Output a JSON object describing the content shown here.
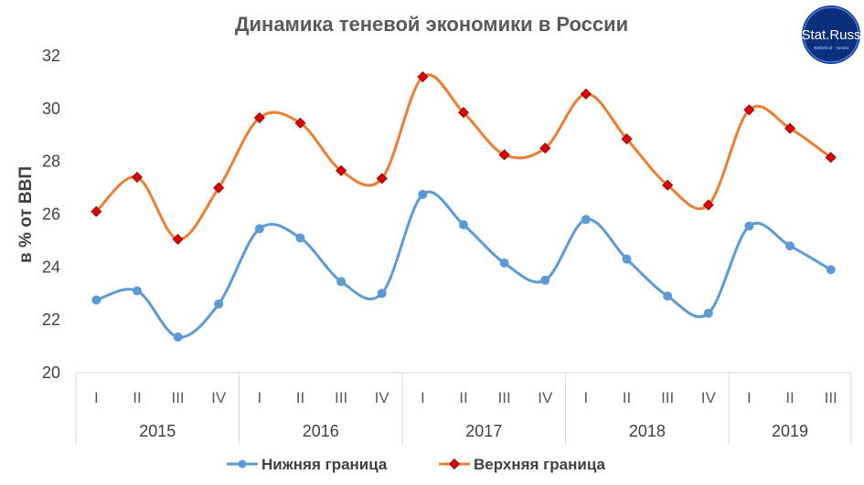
{
  "chart_data": {
    "type": "line",
    "title": "Динамика теневой экономики в России",
    "ylabel": "в % от ВВП",
    "xlabel": "",
    "ylim": [
      20,
      32
    ],
    "yticks": [
      20,
      22,
      24,
      26,
      28,
      30,
      32
    ],
    "quarters": [
      "I",
      "II",
      "III",
      "IV",
      "I",
      "II",
      "III",
      "IV",
      "I",
      "II",
      "III",
      "IV",
      "I",
      "II",
      "III",
      "IV",
      "I",
      "II",
      "III"
    ],
    "years": [
      {
        "label": "2015",
        "count": 4
      },
      {
        "label": "2016",
        "count": 4
      },
      {
        "label": "2017",
        "count": 4
      },
      {
        "label": "2018",
        "count": 4
      },
      {
        "label": "2019",
        "count": 3
      }
    ],
    "series": [
      {
        "name": "Нижняя граница",
        "color": "#5B9BD5",
        "marker": "circle",
        "values": [
          22.75,
          23.1,
          21.35,
          22.6,
          25.45,
          25.1,
          23.45,
          23.0,
          26.75,
          25.6,
          24.15,
          23.5,
          25.8,
          24.3,
          22.9,
          22.25,
          25.55,
          24.8,
          23.9
        ]
      },
      {
        "name": "Верхняя граница",
        "color": "#ED7D31",
        "marker": "diamond",
        "marker_fill": "#E00000",
        "values": [
          26.1,
          27.4,
          25.05,
          27.0,
          29.65,
          29.45,
          27.65,
          27.35,
          31.2,
          29.85,
          28.25,
          28.5,
          30.55,
          28.85,
          27.1,
          26.35,
          29.95,
          29.25,
          28.15
        ]
      }
    ],
    "legend_position": "bottom",
    "grid": false
  },
  "logo": {
    "text": "Stat.Russ",
    "subtext": "statistical · russia"
  }
}
